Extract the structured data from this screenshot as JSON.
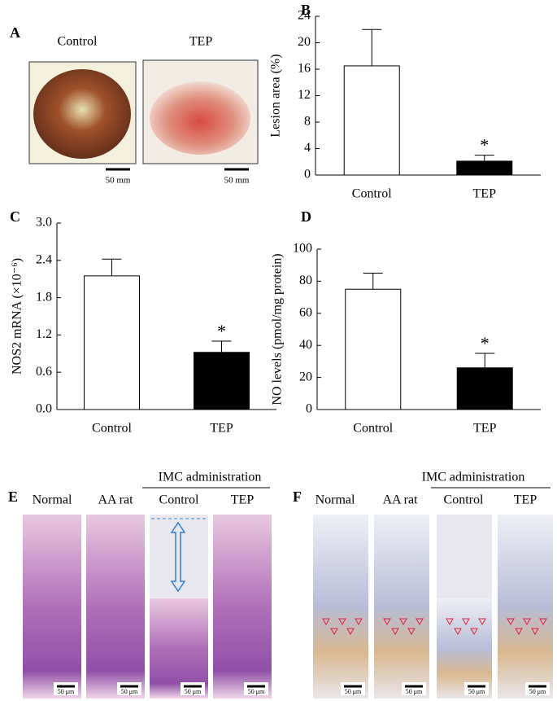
{
  "chart_data": [
    {
      "type": "bar",
      "panel": "B",
      "ylabel": "Lesion area (%)",
      "categories": [
        "Control",
        "TEP"
      ],
      "values": [
        16.5,
        2.1
      ],
      "errors": [
        5.5,
        0.9
      ],
      "colors": [
        "#ffffff",
        "#000000"
      ],
      "ylim": [
        0,
        24
      ],
      "yticks": [
        0,
        4,
        8,
        12,
        16,
        20,
        24
      ],
      "annotation": "*"
    },
    {
      "type": "bar",
      "panel": "C",
      "ylabel": "NOS2 mRNA (×10⁻⁶)",
      "categories": [
        "Control",
        "TEP"
      ],
      "values": [
        2.15,
        0.92
      ],
      "errors": [
        0.27,
        0.18
      ],
      "colors": [
        "#ffffff",
        "#000000"
      ],
      "ylim": [
        0,
        3
      ],
      "yticks": [
        {
          "value": 0,
          "label": "0.0"
        },
        0.6,
        1.2,
        1.8,
        2.4,
        {
          "value": 3,
          "label": "3.0"
        }
      ],
      "annotation": "*"
    },
    {
      "type": "bar",
      "panel": "D",
      "ylabel": "NO levels (pmol/mg protein)",
      "categories": [
        "Control",
        "TEP"
      ],
      "values": [
        75,
        26
      ],
      "errors": [
        10,
        9
      ],
      "colors": [
        "#ffffff",
        "#000000"
      ],
      "ylim": [
        0,
        100
      ],
      "yticks": [
        0,
        20,
        40,
        60,
        80,
        100
      ],
      "annotation": "*"
    }
  ],
  "panel_a": {
    "letter": "A",
    "labels": [
      "Control",
      "TEP"
    ],
    "scale": "50 mm"
  },
  "panel_e": {
    "letter": "E",
    "group": "IMC administration",
    "labels": [
      "Normal",
      "AA rat",
      "Control",
      "TEP"
    ],
    "scale": "50 μm"
  },
  "panel_f": {
    "letter": "F",
    "group": "IMC administration",
    "labels": [
      "Normal",
      "AA rat",
      "Control",
      "TEP"
    ],
    "scale": "50 μm"
  }
}
